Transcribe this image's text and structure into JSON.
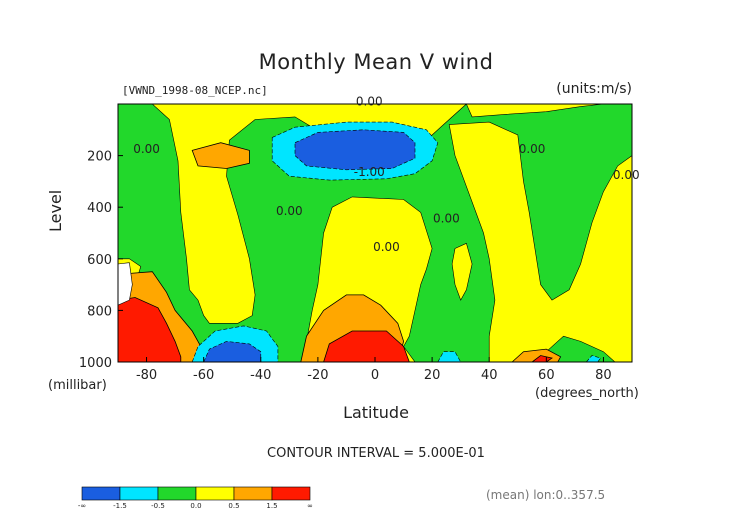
{
  "chart_data": {
    "type": "heatmap",
    "title": "Monthly Mean V wind",
    "subtitle_left": "[VWND_1998-08_NCEP.nc]",
    "subtitle_right": "(units:m/s)",
    "xlabel": "Latitude",
    "xunit": "(degrees_north)",
    "ylabel": "Level",
    "yunit": "(millibar)",
    "xlim": [
      -90,
      90
    ],
    "ylim": [
      1000,
      0
    ],
    "x_ticks": [
      -80,
      -60,
      -40,
      -20,
      0,
      20,
      40,
      60,
      80
    ],
    "y_ticks": [
      200,
      400,
      600,
      800,
      1000
    ],
    "contour_interval_text": "CONTOUR INTERVAL = 5.000E-01",
    "mean_text": "(mean) lon:0..357.5",
    "contour_labels": [
      {
        "text": "0.00",
        "x": -2,
        "y": 5
      },
      {
        "text": "0.00",
        "x": -80,
        "y": 190
      },
      {
        "text": "-1.00",
        "x": -2,
        "y": 280
      },
      {
        "text": "0.00",
        "x": -30,
        "y": 430
      },
      {
        "text": "0.00",
        "x": 25,
        "y": 460
      },
      {
        "text": "0.00",
        "x": 55,
        "y": 190
      },
      {
        "text": "0.00",
        "x": 88,
        "y": 290
      },
      {
        "text": "0.00",
        "x": 4,
        "y": 570
      }
    ],
    "regions": [
      {
        "level": "y",
        "pts": [
          [
            -90,
            0
          ],
          [
            -78,
            0
          ],
          [
            -72,
            60
          ],
          [
            -69,
            220
          ],
          [
            -68,
            420
          ],
          [
            -66,
            600
          ],
          [
            -65,
            720
          ],
          [
            -62,
            760
          ],
          [
            -60,
            820
          ],
          [
            -58,
            850
          ],
          [
            -48,
            850
          ],
          [
            -43,
            820
          ],
          [
            -42,
            740
          ],
          [
            -44,
            600
          ],
          [
            -48,
            430
          ],
          [
            -52,
            280
          ],
          [
            -51,
            140
          ],
          [
            -42,
            60
          ],
          [
            -28,
            50
          ],
          [
            -22,
            90
          ],
          [
            -16,
            150
          ],
          [
            -10,
            230
          ],
          [
            0,
            260
          ],
          [
            4,
            270
          ],
          [
            10,
            220
          ],
          [
            16,
            150
          ],
          [
            20,
            120
          ],
          [
            24,
            80
          ],
          [
            32,
            0
          ],
          [
            -90,
            0
          ]
        ]
      },
      {
        "level": "y",
        "pts": [
          [
            -90,
            600
          ],
          [
            -86,
            600
          ],
          [
            -82,
            630
          ],
          [
            -84,
            700
          ],
          [
            -90,
            720
          ]
        ]
      },
      {
        "level": "y",
        "pts": [
          [
            -20,
            1000
          ],
          [
            -24,
            920
          ],
          [
            -22,
            800
          ],
          [
            -20,
            700
          ],
          [
            -18,
            500
          ],
          [
            -15,
            400
          ],
          [
            -8,
            360
          ],
          [
            10,
            370
          ],
          [
            16,
            420
          ],
          [
            20,
            560
          ],
          [
            18,
            640
          ],
          [
            16,
            700
          ],
          [
            14,
            800
          ],
          [
            12,
            900
          ],
          [
            10,
            940
          ],
          [
            14,
            1000
          ]
        ]
      },
      {
        "level": "y",
        "pts": [
          [
            26,
            80
          ],
          [
            40,
            70
          ],
          [
            50,
            120
          ],
          [
            52,
            300
          ],
          [
            54,
            420
          ],
          [
            56,
            560
          ],
          [
            58,
            700
          ],
          [
            62,
            760
          ],
          [
            68,
            720
          ],
          [
            72,
            620
          ],
          [
            76,
            460
          ],
          [
            80,
            340
          ],
          [
            85,
            240
          ],
          [
            90,
            200
          ],
          [
            90,
            1000
          ],
          [
            84,
            1000
          ],
          [
            80,
            960
          ],
          [
            72,
            920
          ],
          [
            66,
            900
          ],
          [
            60,
            960
          ],
          [
            56,
            1000
          ],
          [
            40,
            1000
          ],
          [
            40,
            900
          ],
          [
            42,
            760
          ],
          [
            40,
            600
          ],
          [
            38,
            500
          ],
          [
            34,
            380
          ],
          [
            28,
            200
          ]
        ]
      },
      {
        "level": "y",
        "pts": [
          [
            -30,
            0
          ],
          [
            32,
            0
          ],
          [
            34,
            50
          ],
          [
            46,
            40
          ],
          [
            60,
            30
          ],
          [
            72,
            10
          ],
          [
            80,
            0
          ],
          [
            -30,
            0
          ]
        ]
      },
      {
        "level": "y",
        "pts": [
          [
            28,
            560
          ],
          [
            32,
            540
          ],
          [
            34,
            620
          ],
          [
            32,
            720
          ],
          [
            30,
            760
          ],
          [
            28,
            700
          ],
          [
            27,
            620
          ]
        ]
      },
      {
        "level": "o",
        "pts": [
          [
            -64,
            180
          ],
          [
            -54,
            150
          ],
          [
            -44,
            180
          ],
          [
            -44,
            230
          ],
          [
            -52,
            250
          ],
          [
            -62,
            240
          ]
        ]
      },
      {
        "level": "o",
        "pts": [
          [
            -26,
            1000
          ],
          [
            -24,
            900
          ],
          [
            -18,
            800
          ],
          [
            -10,
            740
          ],
          [
            -4,
            740
          ],
          [
            2,
            780
          ],
          [
            8,
            850
          ],
          [
            10,
            920
          ],
          [
            8,
            1000
          ]
        ]
      },
      {
        "level": "o",
        "pts": [
          [
            -90,
            660
          ],
          [
            -78,
            650
          ],
          [
            -73,
            730
          ],
          [
            -70,
            800
          ],
          [
            -64,
            880
          ],
          [
            -60,
            960
          ],
          [
            -58,
            1000
          ],
          [
            -90,
            1000
          ]
        ]
      },
      {
        "level": "o",
        "pts": [
          [
            48,
            1000
          ],
          [
            52,
            960
          ],
          [
            60,
            950
          ],
          [
            65,
            980
          ],
          [
            64,
            1000
          ]
        ]
      },
      {
        "level": "r",
        "pts": [
          [
            -18,
            1000
          ],
          [
            -16,
            930
          ],
          [
            -8,
            880
          ],
          [
            4,
            880
          ],
          [
            10,
            940
          ],
          [
            12,
            1000
          ]
        ]
      },
      {
        "level": "r",
        "pts": [
          [
            -90,
            760
          ],
          [
            -84,
            750
          ],
          [
            -76,
            790
          ],
          [
            -73,
            850
          ],
          [
            -70,
            920
          ],
          [
            -68,
            980
          ],
          [
            -68,
            1000
          ],
          [
            -90,
            1000
          ]
        ]
      },
      {
        "level": "r",
        "pts": [
          [
            55,
            1000
          ],
          [
            58,
            975
          ],
          [
            62,
            985
          ],
          [
            60,
            1000
          ]
        ]
      },
      {
        "level": "c",
        "pts": [
          [
            -36,
            130
          ],
          [
            -28,
            90
          ],
          [
            -10,
            70
          ],
          [
            6,
            70
          ],
          [
            18,
            100
          ],
          [
            22,
            150
          ],
          [
            20,
            220
          ],
          [
            14,
            270
          ],
          [
            4,
            290
          ],
          [
            -16,
            295
          ],
          [
            -30,
            280
          ],
          [
            -36,
            220
          ]
        ]
      },
      {
        "level": "c",
        "pts": [
          [
            -64,
            1000
          ],
          [
            -62,
            940
          ],
          [
            -56,
            880
          ],
          [
            -46,
            860
          ],
          [
            -38,
            880
          ],
          [
            -34,
            940
          ],
          [
            -34,
            1000
          ]
        ]
      },
      {
        "level": "c",
        "pts": [
          [
            22,
            1000
          ],
          [
            24,
            960
          ],
          [
            28,
            960
          ],
          [
            30,
            1000
          ]
        ]
      },
      {
        "level": "c",
        "pts": [
          [
            74,
            1000
          ],
          [
            76,
            975
          ],
          [
            79,
            985
          ],
          [
            78,
            1000
          ]
        ]
      },
      {
        "level": "b",
        "pts": [
          [
            -28,
            150
          ],
          [
            -20,
            110
          ],
          [
            -4,
            100
          ],
          [
            10,
            110
          ],
          [
            14,
            150
          ],
          [
            14,
            210
          ],
          [
            6,
            250
          ],
          [
            -10,
            255
          ],
          [
            -24,
            240
          ],
          [
            -28,
            200
          ]
        ]
      },
      {
        "level": "b",
        "pts": [
          [
            -60,
            1000
          ],
          [
            -58,
            950
          ],
          [
            -52,
            920
          ],
          [
            -44,
            930
          ],
          [
            -40,
            960
          ],
          [
            -40,
            1000
          ]
        ]
      },
      {
        "level": "w",
        "pts": [
          [
            -90,
            620
          ],
          [
            -86,
            615
          ],
          [
            -85,
            700
          ],
          [
            -86,
            760
          ],
          [
            -90,
            780
          ]
        ]
      }
    ],
    "colorbar": {
      "colors": [
        "#1a5ee0",
        "#00e5ff",
        "#22d82b",
        "#ffff00",
        "#ffa700",
        "#ff1a00"
      ],
      "labels": [
        "-∞",
        "-1.5",
        "-0.5",
        "0.0",
        "0.5",
        "1.5",
        "∞"
      ]
    },
    "level_colors": {
      "b": "#1a5ee0",
      "c": "#00e5ff",
      "g": "#22d82b",
      "y": "#ffff00",
      "o": "#ffa700",
      "r": "#ff1a00",
      "w": "#ffffff"
    }
  }
}
